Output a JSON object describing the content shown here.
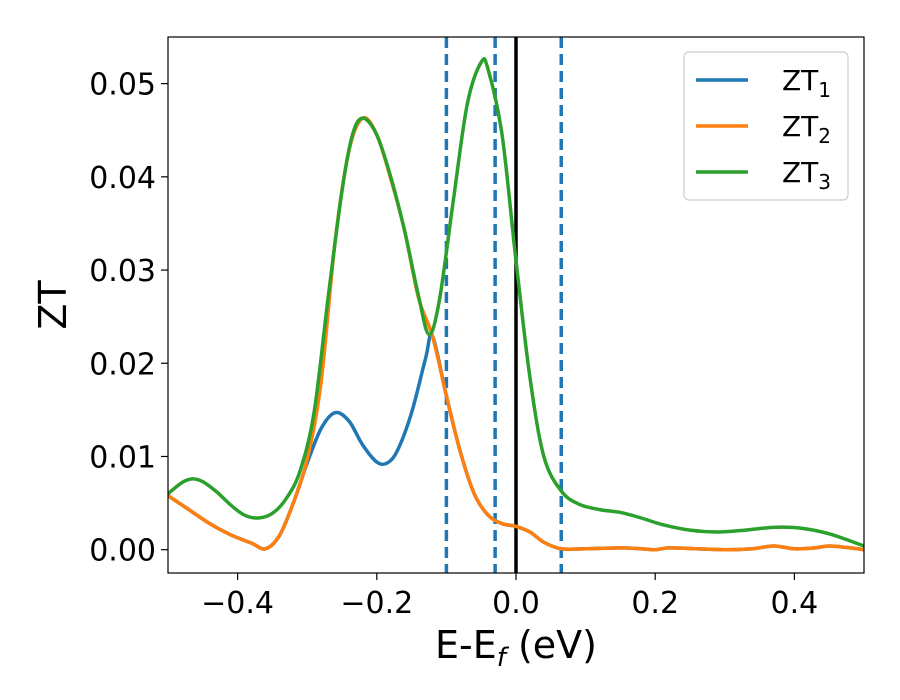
{
  "chart_data": {
    "type": "line",
    "title": "",
    "xlabel": "E-E",
    "xlabel_sub": "f",
    "xlabel_unit": " (eV)",
    "ylabel": "ZT",
    "xlim": [
      -0.5,
      0.5
    ],
    "ylim": [
      -0.0025,
      0.055
    ],
    "grid": false,
    "legend_position": "top-right",
    "x_ticks": [
      {
        "value": -0.4,
        "label": "−0.4"
      },
      {
        "value": -0.2,
        "label": "−0.2"
      },
      {
        "value": 0.0,
        "label": "0.0"
      },
      {
        "value": 0.2,
        "label": "0.2"
      },
      {
        "value": 0.4,
        "label": "0.4"
      }
    ],
    "y_ticks": [
      {
        "value": 0.0,
        "label": "0.00"
      },
      {
        "value": 0.01,
        "label": "0.01"
      },
      {
        "value": 0.02,
        "label": "0.02"
      },
      {
        "value": 0.03,
        "label": "0.03"
      },
      {
        "value": 0.04,
        "label": "0.04"
      },
      {
        "value": 0.05,
        "label": "0.05"
      }
    ],
    "series": [
      {
        "name": "ZT",
        "sub": "1",
        "color": "#1f77b4",
        "points": [
          [
            -0.5,
            0.0058
          ],
          [
            -0.47,
            0.0043
          ],
          [
            -0.44,
            0.0028
          ],
          [
            -0.41,
            0.0016
          ],
          [
            -0.38,
            0.0007
          ],
          [
            -0.36,
            0.0001
          ],
          [
            -0.34,
            0.0015
          ],
          [
            -0.32,
            0.005
          ],
          [
            -0.3,
            0.0093
          ],
          [
            -0.28,
            0.013
          ],
          [
            -0.26,
            0.0147
          ],
          [
            -0.24,
            0.0138
          ],
          [
            -0.22,
            0.0112
          ],
          [
            -0.2,
            0.0094
          ],
          [
            -0.185,
            0.0093
          ],
          [
            -0.17,
            0.0107
          ],
          [
            -0.15,
            0.0147
          ],
          [
            -0.13,
            0.0205
          ],
          [
            -0.12,
            0.0229
          ],
          [
            -0.1,
            0.0165
          ],
          [
            -0.08,
            0.0105
          ],
          [
            -0.06,
            0.006
          ],
          [
            -0.04,
            0.0037
          ],
          [
            -0.02,
            0.0028
          ],
          [
            0.0,
            0.0025
          ],
          [
            0.02,
            0.0019
          ],
          [
            0.04,
            0.0008
          ],
          [
            0.065,
            0.0001
          ],
          [
            0.1,
            0.0001
          ],
          [
            0.15,
            0.0002
          ],
          [
            0.18,
            0.0001
          ],
          [
            0.2,
            0.0
          ],
          [
            0.22,
            0.0002
          ],
          [
            0.26,
            0.0001
          ],
          [
            0.3,
            0.0
          ],
          [
            0.34,
            0.0001
          ],
          [
            0.37,
            0.0004
          ],
          [
            0.4,
            0.0001
          ],
          [
            0.43,
            0.0002
          ],
          [
            0.45,
            0.0004
          ],
          [
            0.48,
            0.0002
          ],
          [
            0.5,
            0.0
          ]
        ]
      },
      {
        "name": "ZT",
        "sub": "2",
        "color": "#ff7f0e",
        "points": [
          [
            -0.5,
            0.0058
          ],
          [
            -0.47,
            0.0043
          ],
          [
            -0.44,
            0.0028
          ],
          [
            -0.41,
            0.0016
          ],
          [
            -0.38,
            0.0007
          ],
          [
            -0.36,
            0.0001
          ],
          [
            -0.34,
            0.0015
          ],
          [
            -0.32,
            0.005
          ],
          [
            -0.3,
            0.0097
          ],
          [
            -0.28,
            0.018
          ],
          [
            -0.26,
            0.033
          ],
          [
            -0.24,
            0.0428
          ],
          [
            -0.22,
            0.0463
          ],
          [
            -0.2,
            0.0445
          ],
          [
            -0.18,
            0.0398
          ],
          [
            -0.16,
            0.0342
          ],
          [
            -0.14,
            0.027
          ],
          [
            -0.12,
            0.0229
          ],
          [
            -0.1,
            0.0165
          ],
          [
            -0.08,
            0.0105
          ],
          [
            -0.06,
            0.006
          ],
          [
            -0.04,
            0.0037
          ],
          [
            -0.02,
            0.0028
          ],
          [
            0.0,
            0.0025
          ],
          [
            0.02,
            0.0019
          ],
          [
            0.04,
            0.0008
          ],
          [
            0.065,
            0.0001
          ],
          [
            0.1,
            0.0001
          ],
          [
            0.15,
            0.0002
          ],
          [
            0.18,
            0.0001
          ],
          [
            0.2,
            0.0
          ],
          [
            0.22,
            0.0002
          ],
          [
            0.26,
            0.0001
          ],
          [
            0.3,
            0.0
          ],
          [
            0.34,
            0.0001
          ],
          [
            0.37,
            0.0004
          ],
          [
            0.4,
            0.0001
          ],
          [
            0.43,
            0.0002
          ],
          [
            0.45,
            0.0004
          ],
          [
            0.48,
            0.0002
          ],
          [
            0.5,
            0.0
          ]
        ]
      },
      {
        "name": "ZT",
        "sub": "3",
        "color": "#2ca02c",
        "points": [
          [
            -0.5,
            0.006
          ],
          [
            -0.48,
            0.0072
          ],
          [
            -0.465,
            0.0076
          ],
          [
            -0.45,
            0.0073
          ],
          [
            -0.43,
            0.0062
          ],
          [
            -0.41,
            0.0048
          ],
          [
            -0.39,
            0.0037
          ],
          [
            -0.37,
            0.0034
          ],
          [
            -0.35,
            0.0039
          ],
          [
            -0.33,
            0.0055
          ],
          [
            -0.31,
            0.0085
          ],
          [
            -0.29,
            0.0148
          ],
          [
            -0.27,
            0.027
          ],
          [
            -0.25,
            0.0385
          ],
          [
            -0.235,
            0.0445
          ],
          [
            -0.22,
            0.0463
          ],
          [
            -0.2,
            0.0445
          ],
          [
            -0.18,
            0.04
          ],
          [
            -0.16,
            0.0342
          ],
          [
            -0.14,
            0.0272
          ],
          [
            -0.125,
            0.0231
          ],
          [
            -0.11,
            0.0268
          ],
          [
            -0.09,
            0.0375
          ],
          [
            -0.07,
            0.0478
          ],
          [
            -0.05,
            0.0523
          ],
          [
            -0.04,
            0.0515
          ],
          [
            -0.02,
            0.0445
          ],
          [
            0.0,
            0.031
          ],
          [
            0.02,
            0.0185
          ],
          [
            0.04,
            0.01
          ],
          [
            0.065,
            0.0063
          ],
          [
            0.09,
            0.0049
          ],
          [
            0.12,
            0.0043
          ],
          [
            0.15,
            0.004
          ],
          [
            0.18,
            0.0034
          ],
          [
            0.21,
            0.0027
          ],
          [
            0.25,
            0.0021
          ],
          [
            0.29,
            0.0019
          ],
          [
            0.33,
            0.0021
          ],
          [
            0.37,
            0.0024
          ],
          [
            0.41,
            0.0023
          ],
          [
            0.45,
            0.0017
          ],
          [
            0.5,
            0.0004
          ]
        ]
      }
    ],
    "vlines": [
      {
        "x": -0.1,
        "style": "dashed",
        "color": "#1f77b4"
      },
      {
        "x": -0.03,
        "style": "dashed",
        "color": "#1f77b4"
      },
      {
        "x": 0.0,
        "style": "solid",
        "color": "#000000"
      },
      {
        "x": 0.065,
        "style": "dashed",
        "color": "#1f77b4"
      }
    ]
  }
}
